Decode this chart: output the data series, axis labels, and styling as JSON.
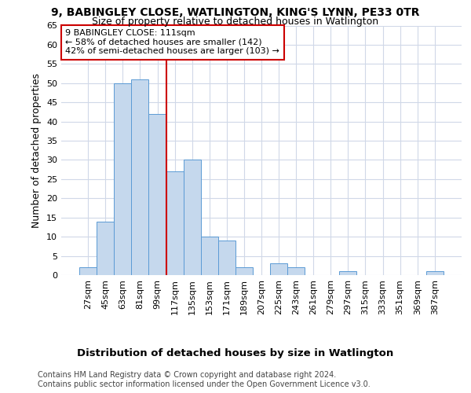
{
  "title1": "9, BABINGLEY CLOSE, WATLINGTON, KING'S LYNN, PE33 0TR",
  "title2": "Size of property relative to detached houses in Watlington",
  "xlabel": "Distribution of detached houses by size in Watlington",
  "ylabel": "Number of detached properties",
  "categories": [
    "27sqm",
    "45sqm",
    "63sqm",
    "81sqm",
    "99sqm",
    "117sqm",
    "135sqm",
    "153sqm",
    "171sqm",
    "189sqm",
    "207sqm",
    "225sqm",
    "243sqm",
    "261sqm",
    "279sqm",
    "297sqm",
    "315sqm",
    "333sqm",
    "351sqm",
    "369sqm",
    "387sqm"
  ],
  "values": [
    2,
    14,
    50,
    51,
    42,
    27,
    30,
    10,
    9,
    2,
    0,
    3,
    2,
    0,
    0,
    1,
    0,
    0,
    0,
    0,
    1
  ],
  "bar_color": "#c5d8ed",
  "bar_edge_color": "#5b9bd5",
  "property_line_x": 4.5,
  "annotation_text1": "9 BABINGLEY CLOSE: 111sqm",
  "annotation_text2": "← 58% of detached houses are smaller (142)",
  "annotation_text3": "42% of semi-detached houses are larger (103) →",
  "annotation_box_color": "#ffffff",
  "annotation_border_color": "#cc0000",
  "vline_color": "#cc0000",
  "footer1": "Contains HM Land Registry data © Crown copyright and database right 2024.",
  "footer2": "Contains public sector information licensed under the Open Government Licence v3.0.",
  "ylim": [
    0,
    65
  ],
  "yticks": [
    0,
    5,
    10,
    15,
    20,
    25,
    30,
    35,
    40,
    45,
    50,
    55,
    60,
    65
  ],
  "bg_color": "#ffffff",
  "grid_color": "#d0d8e8",
  "title1_fontsize": 10,
  "title2_fontsize": 9,
  "annotation_fontsize": 8,
  "axis_label_fontsize": 9,
  "tick_fontsize": 8,
  "footer_fontsize": 7
}
